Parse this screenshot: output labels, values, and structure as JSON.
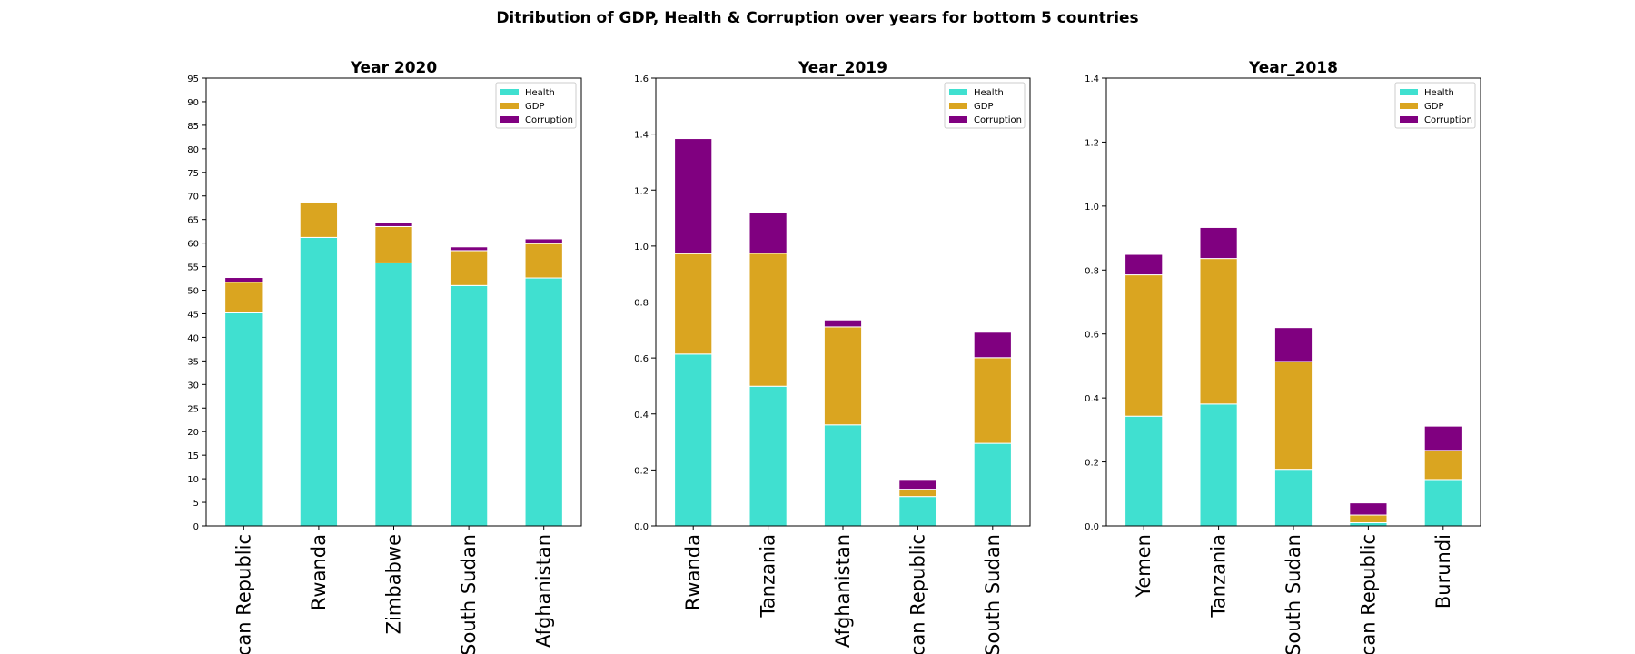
{
  "figure": {
    "suptitle": "Ditribution of GDP, Health & Corruption over years for bottom 5 countries"
  },
  "chart_data": [
    {
      "type": "bar",
      "stacked": true,
      "title": "Year 2020",
      "xlabel": "",
      "ylabel": "",
      "ylim": [
        0,
        95
      ],
      "yticks": [
        "0",
        "5",
        "10",
        "15",
        "20",
        "25",
        "30",
        "35",
        "40",
        "45",
        "50",
        "55",
        "60",
        "65",
        "70",
        "75",
        "80",
        "85",
        "90",
        "95"
      ],
      "categories": [
        "ican Republic",
        "Rwanda",
        "Zimbabwe",
        "South Sudan",
        "Afghanistan"
      ],
      "legend_position": "top-right",
      "grid": false,
      "series": [
        {
          "name": "Health",
          "color": "#40E0D0",
          "values": [
            45.2,
            61.2,
            55.8,
            51.0,
            52.6
          ]
        },
        {
          "name": "GDP",
          "color": "#DAA520",
          "values": [
            6.5,
            7.5,
            7.7,
            7.4,
            7.3
          ]
        },
        {
          "name": "Corruption",
          "color": "#800080",
          "values": [
            1.0,
            0.0,
            0.8,
            0.8,
            1.0
          ]
        }
      ]
    },
    {
      "type": "bar",
      "stacked": true,
      "title": "Year_2019",
      "xlabel": "",
      "ylabel": "",
      "ylim": [
        0,
        1.6
      ],
      "yticks": [
        "0.0",
        "0.2",
        "0.4",
        "0.6",
        "0.8",
        "1.0",
        "1.2",
        "1.4",
        "1.6"
      ],
      "categories": [
        "Rwanda",
        "Tanzania",
        "Afghanistan",
        "ican Republic",
        "South Sudan"
      ],
      "legend_position": "top-right",
      "grid": false,
      "series": [
        {
          "name": "Health",
          "color": "#40E0D0",
          "values": [
            0.614,
            0.499,
            0.361,
            0.105,
            0.295
          ]
        },
        {
          "name": "GDP",
          "color": "#DAA520",
          "values": [
            0.359,
            0.475,
            0.35,
            0.026,
            0.306
          ]
        },
        {
          "name": "Corruption",
          "color": "#800080",
          "values": [
            0.411,
            0.147,
            0.025,
            0.035,
            0.091
          ]
        }
      ]
    },
    {
      "type": "bar",
      "stacked": true,
      "title": "Year_2018",
      "xlabel": "",
      "ylabel": "",
      "ylim": [
        0,
        1.4
      ],
      "yticks": [
        "0.0",
        "0.2",
        "0.4",
        "0.6",
        "0.8",
        "1.0",
        "1.2",
        "1.4"
      ],
      "categories": [
        "Yemen",
        "Tanzania",
        "South Sudan",
        "ican Republic",
        "Burundi"
      ],
      "legend_position": "top-right",
      "grid": false,
      "series": [
        {
          "name": "Health",
          "color": "#40E0D0",
          "values": [
            0.343,
            0.381,
            0.177,
            0.01,
            0.145
          ]
        },
        {
          "name": "GDP",
          "color": "#DAA520",
          "values": [
            0.442,
            0.455,
            0.337,
            0.024,
            0.091
          ]
        },
        {
          "name": "Corruption",
          "color": "#800080",
          "values": [
            0.064,
            0.097,
            0.106,
            0.038,
            0.076
          ]
        }
      ]
    }
  ]
}
